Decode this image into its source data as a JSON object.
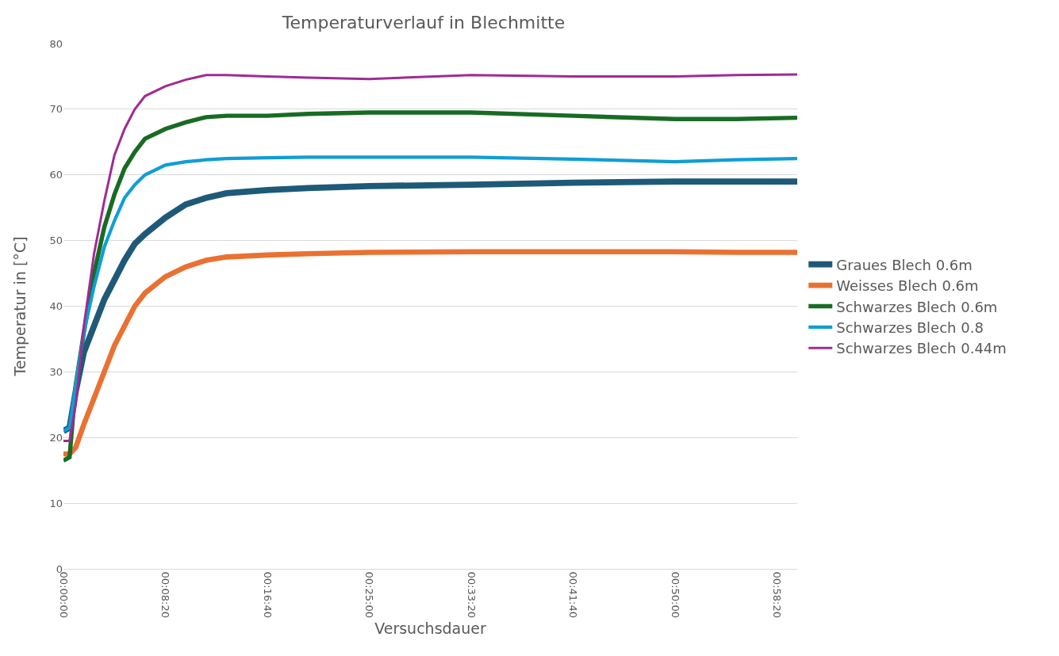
{
  "chart_data": {
    "type": "line",
    "title": "Temperaturverlauf in Blechmitte",
    "xlabel": "Versuchsdauer",
    "ylabel": "Temperatur in [°C]",
    "x": [
      0,
      0.0083,
      0.0167,
      0.0278,
      0.0417,
      0.0556,
      0.0694,
      0.0833,
      0.0972,
      0.1111,
      0.1389,
      0.1667,
      0.1944,
      0.2222,
      0.2778,
      0.3333,
      0.4167,
      0.5556,
      0.6944,
      0.8333,
      0.9167,
      1.0
    ],
    "series": [
      {
        "name": "Graues Blech 0.6m",
        "color": "#1e5a78",
        "values": [
          21,
          21.5,
          27,
          33,
          37,
          41,
          44,
          47,
          49.5,
          51,
          53.5,
          55.5,
          56.5,
          57.2,
          57.7,
          58,
          58.3,
          58.5,
          58.8,
          59,
          59,
          59
        ]
      },
      {
        "name": "Weisses Blech 0.6m",
        "color": "#e97132",
        "values": [
          17.5,
          17.5,
          18.5,
          22,
          26,
          30,
          34,
          37,
          40,
          42,
          44.5,
          46,
          47,
          47.5,
          47.8,
          48,
          48.2,
          48.3,
          48.3,
          48.3,
          48.2,
          48.2
        ]
      },
      {
        "name": "Schwarzes Blech 0.6m",
        "color": "#196b24",
        "values": [
          16.5,
          17,
          28,
          36,
          45,
          52,
          57,
          61,
          63.5,
          65.5,
          67,
          68,
          68.8,
          69,
          69,
          69.3,
          69.5,
          69.5,
          69,
          68.5,
          68.5,
          68.7
        ]
      },
      {
        "name": "Schwarzes Blech 0.8",
        "color": "#0f9ed5",
        "values": [
          21,
          21.5,
          28,
          36,
          43,
          49,
          53,
          56.5,
          58.5,
          60,
          61.5,
          62,
          62.3,
          62.5,
          62.6,
          62.7,
          62.7,
          62.7,
          62.4,
          62,
          62.3,
          62.5
        ]
      },
      {
        "name": "Schwarzes Blech 0.44m",
        "color": "#a02b93",
        "values": [
          19.5,
          19.5,
          25,
          37,
          48,
          56,
          63,
          67,
          70,
          72,
          73.5,
          74.5,
          75.2,
          75.2,
          75,
          74.8,
          74.6,
          75.2,
          75,
          75,
          75.2,
          75.3
        ]
      }
    ],
    "xlim": [
      0,
      1.0
    ],
    "xticks": [
      {
        "value": 0,
        "label": "00:00:00"
      },
      {
        "value": 0.138889,
        "label": "00:08:20"
      },
      {
        "value": 0.277778,
        "label": "00:16:40"
      },
      {
        "value": 0.416667,
        "label": "00:25:00"
      },
      {
        "value": 0.555556,
        "label": "00:33:20"
      },
      {
        "value": 0.694444,
        "label": "00:41:40"
      },
      {
        "value": 0.833333,
        "label": "00:50:00"
      },
      {
        "value": 0.972222,
        "label": "00:58:20"
      }
    ],
    "ylim": [
      0,
      80
    ],
    "yticks": [
      0,
      10,
      20,
      30,
      40,
      50,
      60,
      70,
      80
    ],
    "grid": "y",
    "legend": "right",
    "marker": "none",
    "line_style": "solid"
  }
}
